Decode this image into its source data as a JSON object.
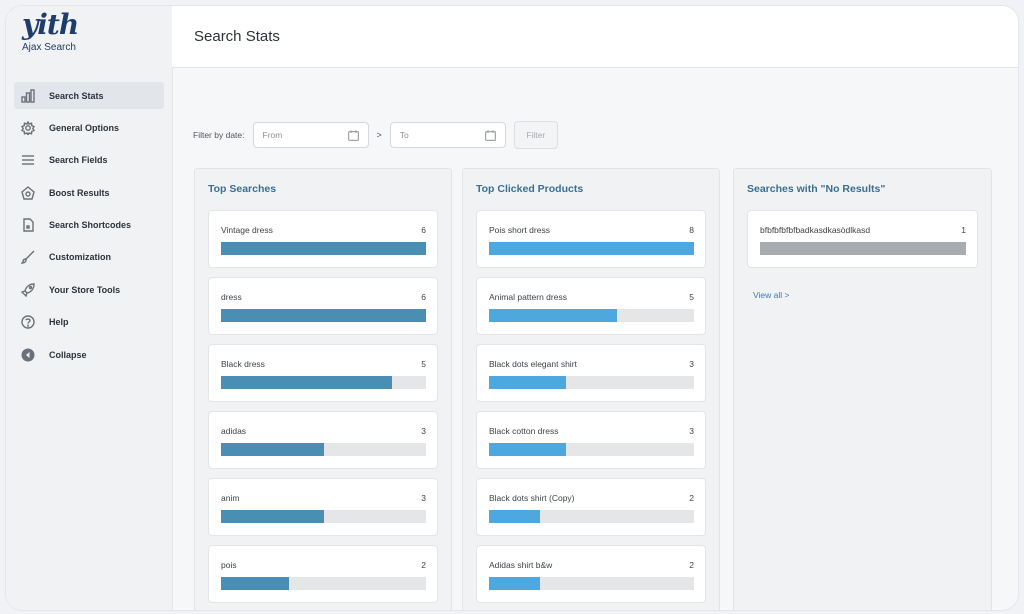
{
  "app": {
    "logo": "yith",
    "subtitle": "Ajax Search"
  },
  "nav": [
    {
      "label": "Search Stats",
      "icon": "chart-icon",
      "active": true
    },
    {
      "label": "General Options",
      "icon": "gear-icon"
    },
    {
      "label": "Search Fields",
      "icon": "fields-icon"
    },
    {
      "label": "Boost Results",
      "icon": "boost-icon"
    },
    {
      "label": "Search Shortcodes",
      "icon": "shortcode-icon"
    },
    {
      "label": "Customization",
      "icon": "brush-icon"
    },
    {
      "label": "Your Store Tools",
      "icon": "rocket-icon"
    },
    {
      "label": "Help",
      "icon": "help-icon"
    },
    {
      "label": "Collapse",
      "icon": "collapse-icon"
    }
  ],
  "header": {
    "title": "Search Stats"
  },
  "filter": {
    "label": "Filter by date:",
    "from_placeholder": "From",
    "separator": ">",
    "to_placeholder": "To",
    "button": "Filter"
  },
  "colors": {
    "top_searches": "#4a8fb3",
    "top_clicked": "#4ea8e0",
    "no_results": "#a7acb0"
  },
  "panels": {
    "top_searches": {
      "title": "Top Searches",
      "max": 6,
      "items": [
        {
          "name": "Vintage dress",
          "count": "6",
          "value": 6
        },
        {
          "name": "dress",
          "count": "6",
          "value": 6
        },
        {
          "name": "Black dress",
          "count": "5",
          "value": 5
        },
        {
          "name": "adidas",
          "count": "3",
          "value": 3
        },
        {
          "name": "anim",
          "count": "3",
          "value": 3
        },
        {
          "name": "pois",
          "count": "2",
          "value": 2
        }
      ]
    },
    "top_clicked": {
      "title": "Top Clicked Products",
      "max": 8,
      "items": [
        {
          "name": "Pois short dress",
          "count": "8",
          "value": 8
        },
        {
          "name": "Animal pattern dress",
          "count": "5",
          "value": 5
        },
        {
          "name": "Black dots elegant shirt",
          "count": "3",
          "value": 3
        },
        {
          "name": "Black cotton dress",
          "count": "3",
          "value": 3
        },
        {
          "name": "Black dots shirt (Copy)",
          "count": "2",
          "value": 2
        },
        {
          "name": "Adidas shirt b&w",
          "count": "2",
          "value": 2
        }
      ]
    },
    "no_results": {
      "title": "Searches with \"No Results\"",
      "max": 1,
      "items": [
        {
          "name": "bfbfbfbfbfbadkasdkasòdlkasd",
          "count": "1",
          "value": 1
        }
      ],
      "view_all": "View all >"
    }
  }
}
